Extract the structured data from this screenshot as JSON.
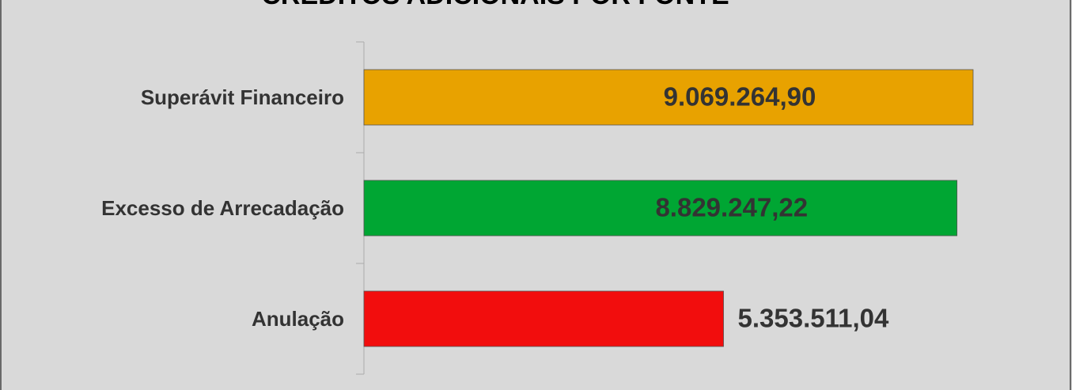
{
  "chart_data": {
    "type": "bar",
    "orientation": "horizontal",
    "title": "CRÉDITOS ADICIONAIS POR FONTE",
    "categories": [
      "Superávit Financeiro",
      "Excesso de Arrecadação",
      "Anulação"
    ],
    "values": [
      9069264.9,
      8829247.22,
      5353511.04
    ],
    "value_labels": [
      "9.069.264,90",
      "8.829.247,22",
      "5.353.511,04"
    ],
    "colors": [
      "#e8a200",
      "#00a633",
      "#f20d0d"
    ]
  }
}
